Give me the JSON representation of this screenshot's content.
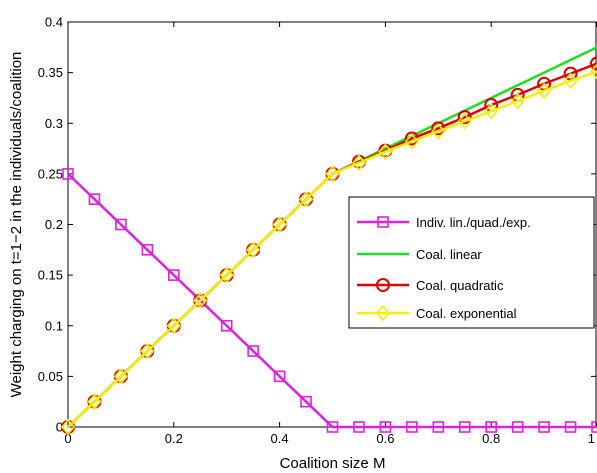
{
  "chart_data": {
    "type": "line",
    "title": "",
    "xlabel": "Coalition size M",
    "ylabel": "Weight charging on t=1−2 in the individuals/coalition",
    "xlim": [
      0,
      1
    ],
    "ylim": [
      0,
      0.4
    ],
    "xticks": [
      "0",
      "0.2",
      "0.4",
      "0.6",
      "0.8",
      "1"
    ],
    "yticks": [
      "0",
      "0.05",
      "0.1",
      "0.15",
      "0.2",
      "0.25",
      "0.3",
      "0.35",
      "0.4"
    ],
    "grid": false,
    "legend_position": "right",
    "x": [
      0,
      0.05,
      0.1,
      0.15,
      0.2,
      0.25,
      0.3,
      0.35,
      0.4,
      0.45,
      0.5,
      0.55,
      0.6,
      0.65,
      0.7,
      0.75,
      0.8,
      0.85,
      0.9,
      0.95,
      1
    ],
    "series": [
      {
        "name": "Indiv. lin./quad./exp.",
        "color": "#e020e0",
        "marker": "square",
        "values": [
          0.25,
          0.225,
          0.2,
          0.175,
          0.15,
          0.125,
          0.1,
          0.075,
          0.05,
          0.025,
          0,
          0,
          0,
          0,
          0,
          0,
          0,
          0,
          0,
          0,
          0
        ]
      },
      {
        "name": "Coal. linear",
        "color": "#22dd22",
        "marker": "none",
        "values": [
          0,
          0.025,
          0.05,
          0.075,
          0.1,
          0.125,
          0.15,
          0.175,
          0.2,
          0.225,
          0.25,
          0.2625,
          0.275,
          0.2875,
          0.3,
          0.3125,
          0.325,
          0.3375,
          0.35,
          0.3625,
          0.375
        ]
      },
      {
        "name": "Coal. quadratic",
        "color": "#e00000",
        "marker": "circle",
        "values": [
          0,
          0.025,
          0.05,
          0.075,
          0.1,
          0.125,
          0.15,
          0.175,
          0.2,
          0.225,
          0.25,
          0.262,
          0.273,
          0.285,
          0.295,
          0.306,
          0.318,
          0.328,
          0.339,
          0.349,
          0.359
        ]
      },
      {
        "name": "Coal. exponential",
        "color": "#f0f000",
        "marker": "diamond",
        "values": [
          0,
          0.025,
          0.05,
          0.075,
          0.1,
          0.125,
          0.15,
          0.175,
          0.2,
          0.225,
          0.25,
          0.261,
          0.272,
          0.282,
          0.292,
          0.302,
          0.312,
          0.322,
          0.332,
          0.342,
          0.351
        ]
      }
    ]
  }
}
